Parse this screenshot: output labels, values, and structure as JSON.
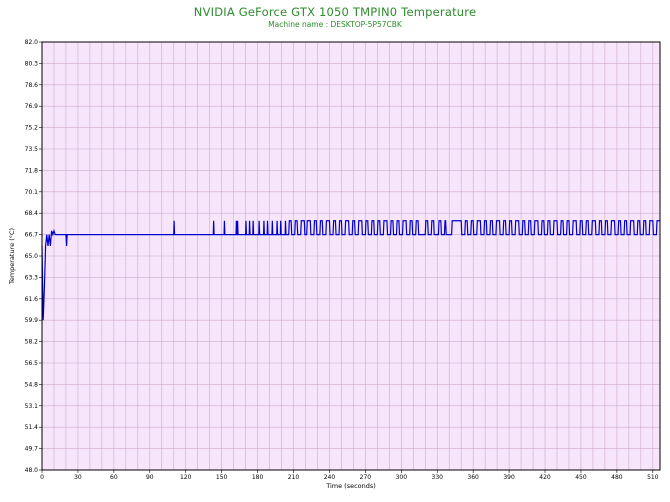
{
  "chart_data": {
    "type": "line",
    "title": "NVIDIA GeForce GTX 1050 TMPIN0 Temperature",
    "subtitle": "Machine name : DESKTOP-5P57CBK",
    "xlabel": "Time (seconds)",
    "ylabel": "Temperature (°C)",
    "xlim": [
      0,
      516
    ],
    "ylim": [
      48.0,
      82.0
    ],
    "x_ticks": [
      "0",
      "30",
      "60",
      "90",
      "120",
      "150",
      "180",
      "210",
      "240",
      "270",
      "300",
      "330",
      "360",
      "390",
      "420",
      "450",
      "480",
      "510"
    ],
    "y_ticks": [
      "82.0",
      "80.3",
      "78.6",
      "76.9",
      "75.2",
      "73.5",
      "71.8",
      "70.1",
      "68.4",
      "66.7",
      "65.0",
      "63.3",
      "61.6",
      "59.9",
      "58.2",
      "56.5",
      "54.8",
      "53.1",
      "51.4",
      "49.7",
      "48.0"
    ],
    "grid": true,
    "colors": {
      "line": "#0000cc",
      "background": "#f7e6fb",
      "grid": "#cda9cd",
      "title": "#2e8b2e"
    },
    "series": [
      {
        "points": [
          [
            0,
            65.8
          ],
          [
            1,
            59.9
          ],
          [
            2,
            62.5
          ],
          [
            3,
            65.8
          ],
          [
            4,
            66.7
          ],
          [
            5,
            65.8
          ],
          [
            6,
            66.7
          ],
          [
            7,
            65.8
          ],
          [
            8,
            67.0
          ],
          [
            9,
            66.7
          ],
          [
            10,
            67.0
          ],
          [
            11,
            66.7
          ],
          [
            20,
            66.7
          ],
          [
            20.5,
            65.8
          ],
          [
            21,
            66.7
          ],
          [
            110,
            66.7
          ],
          [
            110.3,
            67.8
          ],
          [
            110.7,
            66.7
          ],
          [
            143,
            66.7
          ],
          [
            143.3,
            67.8
          ],
          [
            143.7,
            66.7
          ],
          [
            152,
            66.7
          ],
          [
            152.3,
            67.8
          ],
          [
            152.7,
            66.7
          ],
          [
            162,
            66.7
          ],
          [
            162.3,
            67.8
          ],
          [
            162.7,
            66.7
          ],
          [
            163,
            66.7
          ],
          [
            163.3,
            67.8
          ],
          [
            163.7,
            66.7
          ],
          [
            170,
            66.7
          ],
          [
            170.3,
            67.8
          ],
          [
            170.7,
            66.7
          ],
          [
            173,
            66.7
          ],
          [
            173.3,
            67.8
          ],
          [
            173.7,
            66.7
          ],
          [
            176,
            66.7
          ],
          [
            176.3,
            67.8
          ],
          [
            176.7,
            66.7
          ],
          [
            181,
            66.7
          ],
          [
            181.3,
            67.8
          ],
          [
            181.7,
            66.7
          ],
          [
            185,
            66.7
          ],
          [
            185.3,
            67.8
          ],
          [
            185.7,
            66.7
          ],
          [
            188,
            66.7
          ],
          [
            188.3,
            67.8
          ],
          [
            188.7,
            66.7
          ],
          [
            192,
            66.7
          ],
          [
            192.3,
            67.8
          ],
          [
            192.7,
            66.7
          ],
          [
            196,
            66.7
          ],
          [
            196.3,
            67.8
          ],
          [
            196.7,
            66.7
          ],
          [
            199,
            66.7
          ],
          [
            199.3,
            67.8
          ],
          [
            199.7,
            66.7
          ],
          [
            203,
            66.7
          ],
          [
            203.3,
            67.8
          ],
          [
            203.7,
            66.7
          ],
          [
            206,
            66.7
          ],
          [
            206.5,
            67.8
          ],
          [
            208,
            67.8
          ],
          [
            208.5,
            66.7
          ],
          [
            211,
            66.7
          ],
          [
            211.5,
            67.8
          ],
          [
            213,
            67.8
          ],
          [
            213.5,
            66.7
          ],
          [
            216,
            66.7
          ],
          [
            216.5,
            67.8
          ],
          [
            219,
            67.8
          ],
          [
            219.5,
            66.7
          ],
          [
            221,
            66.7
          ],
          [
            221.5,
            67.8
          ],
          [
            224,
            67.8
          ],
          [
            224.5,
            66.7
          ],
          [
            227,
            66.7
          ],
          [
            227.5,
            67.8
          ],
          [
            229,
            67.8
          ],
          [
            229.5,
            66.7
          ],
          [
            232,
            66.7
          ],
          [
            232.5,
            67.8
          ],
          [
            234,
            67.8
          ],
          [
            234.5,
            66.7
          ],
          [
            237,
            66.7
          ],
          [
            237.5,
            67.8
          ],
          [
            240,
            67.8
          ],
          [
            240.5,
            66.7
          ],
          [
            243,
            66.7
          ],
          [
            243.5,
            67.8
          ],
          [
            245,
            67.8
          ],
          [
            245.5,
            66.7
          ],
          [
            248,
            66.7
          ],
          [
            248.5,
            67.8
          ],
          [
            250,
            67.8
          ],
          [
            250.5,
            66.7
          ],
          [
            253,
            66.7
          ],
          [
            253.5,
            67.8
          ],
          [
            256,
            67.8
          ],
          [
            256.5,
            66.7
          ],
          [
            259,
            66.7
          ],
          [
            259.5,
            67.8
          ],
          [
            261,
            67.8
          ],
          [
            261.5,
            66.7
          ],
          [
            264,
            66.7
          ],
          [
            264.5,
            67.8
          ],
          [
            267,
            67.8
          ],
          [
            267.5,
            66.7
          ],
          [
            270,
            66.7
          ],
          [
            270.5,
            67.8
          ],
          [
            272,
            67.8
          ],
          [
            272.5,
            66.7
          ],
          [
            275,
            66.7
          ],
          [
            275.5,
            67.8
          ],
          [
            277,
            67.8
          ],
          [
            277.5,
            66.7
          ],
          [
            280,
            66.7
          ],
          [
            280.5,
            67.8
          ],
          [
            282,
            67.8
          ],
          [
            282.5,
            66.7
          ],
          [
            285,
            66.7
          ],
          [
            285.5,
            67.8
          ],
          [
            288,
            67.8
          ],
          [
            288.5,
            66.7
          ],
          [
            291,
            66.7
          ],
          [
            291.5,
            67.8
          ],
          [
            293,
            67.8
          ],
          [
            293.5,
            66.7
          ],
          [
            296,
            66.7
          ],
          [
            296.5,
            67.8
          ],
          [
            298,
            67.8
          ],
          [
            298.5,
            66.7
          ],
          [
            301,
            66.7
          ],
          [
            301.5,
            67.8
          ],
          [
            304,
            67.8
          ],
          [
            304.5,
            66.7
          ],
          [
            307,
            66.7
          ],
          [
            307.5,
            67.8
          ],
          [
            309,
            67.8
          ],
          [
            309.5,
            66.7
          ],
          [
            312,
            66.7
          ],
          [
            312.5,
            67.8
          ],
          [
            314,
            67.8
          ],
          [
            314.5,
            66.7
          ],
          [
            320,
            66.7
          ],
          [
            320.5,
            67.8
          ],
          [
            322,
            67.8
          ],
          [
            322.5,
            66.7
          ],
          [
            325,
            66.7
          ],
          [
            325.5,
            67.8
          ],
          [
            327,
            67.8
          ],
          [
            327.5,
            66.7
          ],
          [
            331,
            66.7
          ],
          [
            331.5,
            67.8
          ],
          [
            333,
            67.8
          ],
          [
            333.5,
            66.7
          ],
          [
            336,
            66.7
          ],
          [
            336.5,
            67.8
          ],
          [
            337,
            67.8
          ],
          [
            337.5,
            66.7
          ],
          [
            342,
            66.7
          ],
          [
            342.5,
            67.8
          ],
          [
            350,
            67.8
          ],
          [
            350.5,
            66.7
          ],
          [
            353,
            66.7
          ],
          [
            353.5,
            67.8
          ],
          [
            355,
            67.8
          ],
          [
            355.5,
            66.7
          ],
          [
            358,
            66.7
          ],
          [
            358.5,
            67.8
          ],
          [
            360,
            67.8
          ],
          [
            360.5,
            66.7
          ],
          [
            363,
            66.7
          ],
          [
            363.5,
            67.8
          ],
          [
            366,
            67.8
          ],
          [
            366.5,
            66.7
          ],
          [
            369,
            66.7
          ],
          [
            369.5,
            67.8
          ],
          [
            371,
            67.8
          ],
          [
            371.5,
            66.7
          ],
          [
            374,
            66.7
          ],
          [
            374.5,
            67.8
          ],
          [
            376,
            67.8
          ],
          [
            376.5,
            66.7
          ],
          [
            379,
            66.7
          ],
          [
            379.5,
            67.8
          ],
          [
            382,
            67.8
          ],
          [
            382.5,
            66.7
          ],
          [
            385,
            66.7
          ],
          [
            385.5,
            67.8
          ],
          [
            387,
            67.8
          ],
          [
            387.5,
            66.7
          ],
          [
            390,
            66.7
          ],
          [
            390.5,
            67.8
          ],
          [
            392,
            67.8
          ],
          [
            392.5,
            66.7
          ],
          [
            395,
            66.7
          ],
          [
            395.5,
            67.8
          ],
          [
            398,
            67.8
          ],
          [
            398.5,
            66.7
          ],
          [
            401,
            66.7
          ],
          [
            401.5,
            67.8
          ],
          [
            403,
            67.8
          ],
          [
            403.5,
            66.7
          ],
          [
            406,
            66.7
          ],
          [
            406.5,
            67.8
          ],
          [
            408,
            67.8
          ],
          [
            408.5,
            66.7
          ],
          [
            411,
            66.7
          ],
          [
            411.5,
            67.8
          ],
          [
            414,
            67.8
          ],
          [
            414.5,
            66.7
          ],
          [
            417,
            66.7
          ],
          [
            417.5,
            67.8
          ],
          [
            419,
            67.8
          ],
          [
            419.5,
            66.7
          ],
          [
            422,
            66.7
          ],
          [
            422.5,
            67.8
          ],
          [
            424,
            67.8
          ],
          [
            424.5,
            66.7
          ],
          [
            427,
            66.7
          ],
          [
            427.5,
            67.8
          ],
          [
            430,
            67.8
          ],
          [
            430.5,
            66.7
          ],
          [
            433,
            66.7
          ],
          [
            433.5,
            67.8
          ],
          [
            435,
            67.8
          ],
          [
            435.5,
            66.7
          ],
          [
            438,
            66.7
          ],
          [
            438.5,
            67.8
          ],
          [
            440,
            67.8
          ],
          [
            440.5,
            66.7
          ],
          [
            443,
            66.7
          ],
          [
            443.5,
            67.8
          ],
          [
            446,
            67.8
          ],
          [
            446.5,
            66.7
          ],
          [
            449,
            66.7
          ],
          [
            449.5,
            67.8
          ],
          [
            451,
            67.8
          ],
          [
            451.5,
            66.7
          ],
          [
            454,
            66.7
          ],
          [
            454.5,
            67.8
          ],
          [
            456,
            67.8
          ],
          [
            456.5,
            66.7
          ],
          [
            459,
            66.7
          ],
          [
            459.5,
            67.8
          ],
          [
            462,
            67.8
          ],
          [
            462.5,
            66.7
          ],
          [
            465,
            66.7
          ],
          [
            465.5,
            67.8
          ],
          [
            467,
            67.8
          ],
          [
            467.5,
            66.7
          ],
          [
            470,
            66.7
          ],
          [
            470.5,
            67.8
          ],
          [
            472,
            67.8
          ],
          [
            472.5,
            66.7
          ],
          [
            475,
            66.7
          ],
          [
            475.5,
            67.8
          ],
          [
            478,
            67.8
          ],
          [
            478.5,
            66.7
          ],
          [
            481,
            66.7
          ],
          [
            481.5,
            67.8
          ],
          [
            483,
            67.8
          ],
          [
            483.5,
            66.7
          ],
          [
            486,
            66.7
          ],
          [
            486.5,
            67.8
          ],
          [
            488,
            67.8
          ],
          [
            488.5,
            66.7
          ],
          [
            491,
            66.7
          ],
          [
            491.5,
            67.8
          ],
          [
            494,
            67.8
          ],
          [
            494.5,
            66.7
          ],
          [
            497,
            66.7
          ],
          [
            497.5,
            67.8
          ],
          [
            499,
            67.8
          ],
          [
            499.5,
            66.7
          ],
          [
            502,
            66.7
          ],
          [
            502.5,
            67.8
          ],
          [
            504,
            67.8
          ],
          [
            504.5,
            66.7
          ],
          [
            507,
            66.7
          ],
          [
            507.5,
            67.8
          ],
          [
            510,
            67.8
          ],
          [
            510.5,
            66.7
          ],
          [
            513,
            66.7
          ],
          [
            513.5,
            67.8
          ],
          [
            516,
            67.8
          ]
        ]
      }
    ]
  }
}
